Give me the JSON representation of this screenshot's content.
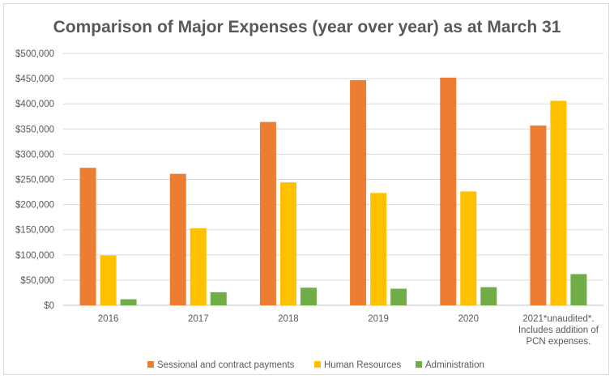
{
  "chart_data": {
    "type": "bar",
    "title": "Comparison of Major Expenses (year over year) as at March 31",
    "categories": [
      [
        "2016"
      ],
      [
        "2017"
      ],
      [
        "2018"
      ],
      [
        "2019"
      ],
      [
        "2020"
      ],
      [
        "2021*unaudited*.",
        "Includes addition of",
        "PCN expenses."
      ]
    ],
    "series": [
      {
        "name": "Sessional and contract payments",
        "color": "#ed7d31",
        "values": [
          273000,
          261000,
          364000,
          447000,
          452000,
          357000
        ]
      },
      {
        "name": "Human Resources",
        "color": "#ffc000",
        "values": [
          99000,
          153000,
          244000,
          223000,
          226000,
          406000
        ]
      },
      {
        "name": "Administration",
        "color": "#70ad47",
        "values": [
          12000,
          26000,
          35000,
          33000,
          36000,
          62000
        ]
      }
    ],
    "y_ticks": [
      "$0",
      "$50,000",
      "$100,000",
      "$150,000",
      "$200,000",
      "$250,000",
      "$300,000",
      "$350,000",
      "$400,000",
      "$450,000",
      "$500,000"
    ],
    "ylim": [
      0,
      500000
    ],
    "gridlines": true,
    "legend_position": "bottom"
  }
}
